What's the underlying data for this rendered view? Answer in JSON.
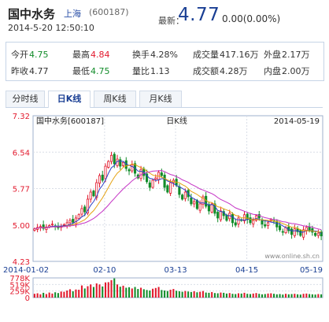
{
  "header": {
    "name": "国中水务",
    "market": "上海",
    "code": "(600187)",
    "latest_label": "最新：",
    "price": "4.77",
    "change": "0.00(0.00%)",
    "datetime": "2014-5-20 12:50:10"
  },
  "quote": {
    "open_label": "今开",
    "open": "4.75",
    "high_label": "最高",
    "high": "4.84",
    "turnover_label": "换手",
    "turnover": "4.28%",
    "volume_label": "成交量",
    "volume": "417.16万",
    "outer_label": "外盘",
    "outer": "2.17万",
    "prevclose_label": "昨收",
    "prevclose": "4.77",
    "low_label": "最低",
    "low": "4.75",
    "ratio_label": "量比",
    "ratio": "1.13",
    "amount_label": "成交额",
    "amount": "4.28万",
    "inner_label": "内盘",
    "inner": "2.00万"
  },
  "tabs": [
    "分时线",
    "日K线",
    "周K线",
    "月K线"
  ],
  "active_tab": 1,
  "colors": {
    "up": "#e2192d",
    "down": "#128c2a",
    "ma5": "#2b3fc7",
    "ma10": "#e5a212",
    "ma20": "#c533c5",
    "grid": "#d9dee7",
    "axis": "#1a3f94"
  },
  "chart_data": {
    "type": "candlestick",
    "title": "国中水务[600187]",
    "period_label": "日K线",
    "date_label": "2014-05-19",
    "watermark": "www.online.sh.cn",
    "y_ticks": [
      "7.32",
      "6.54",
      "5.77",
      "5.00",
      "4.23"
    ],
    "ylim": [
      4.23,
      7.32
    ],
    "x_ticks": [
      "2014-01-02",
      "02-10",
      "03-13",
      "04-15",
      "05-19"
    ],
    "vol_ticks": [
      "778K",
      "519K",
      "259K",
      "0"
    ],
    "vol_max": 778,
    "closes": [
      4.92,
      4.95,
      4.97,
      4.93,
      4.96,
      4.99,
      5.02,
      4.98,
      4.94,
      4.97,
      5.01,
      5.05,
      5.1,
      5.06,
      5.15,
      5.22,
      5.35,
      5.28,
      5.55,
      5.7,
      5.62,
      5.9,
      6.05,
      5.95,
      6.25,
      6.35,
      6.48,
      6.3,
      6.4,
      6.25,
      6.33,
      6.2,
      6.15,
      6.28,
      6.1,
      6.0,
      6.18,
      6.05,
      5.92,
      5.8,
      5.95,
      6.0,
      6.12,
      6.05,
      5.8,
      5.7,
      5.9,
      5.95,
      5.85,
      5.65,
      5.55,
      5.7,
      5.6,
      5.45,
      5.5,
      5.35,
      5.45,
      5.6,
      5.4,
      5.3,
      5.45,
      5.25,
      5.15,
      5.3,
      5.2,
      5.1,
      5.25,
      5.05,
      5.0,
      5.15,
      5.1,
      5.22,
      5.12,
      5.05,
      5.1,
      5.2,
      5.15,
      5.02,
      4.98,
      5.05,
      5.12,
      5.08,
      4.96,
      4.9,
      4.85,
      4.95,
      4.88,
      4.8,
      4.92,
      4.86,
      4.78,
      4.9,
      4.95,
      4.89,
      4.85,
      4.78,
      4.83,
      4.77
    ],
    "volumes": [
      150,
      170,
      130,
      190,
      140,
      200,
      160,
      210,
      180,
      240,
      230,
      280,
      330,
      250,
      320,
      310,
      480,
      360,
      450,
      520,
      420,
      560,
      520,
      440,
      600,
      610,
      690,
      760,
      520,
      430,
      470,
      390,
      410,
      360,
      420,
      340,
      390,
      330,
      300,
      280,
      350,
      380,
      420,
      300,
      280,
      260,
      310,
      340,
      270,
      250,
      230,
      260,
      240,
      220,
      250,
      210,
      230,
      260,
      200,
      190,
      220,
      180,
      170,
      200,
      190,
      160,
      180,
      150,
      140,
      170,
      160,
      190,
      150,
      140,
      160,
      180,
      150,
      130,
      140,
      160,
      170,
      150,
      130,
      140,
      120,
      150,
      130,
      140,
      150,
      130,
      120,
      150,
      160,
      140,
      130,
      120,
      140,
      130
    ]
  }
}
